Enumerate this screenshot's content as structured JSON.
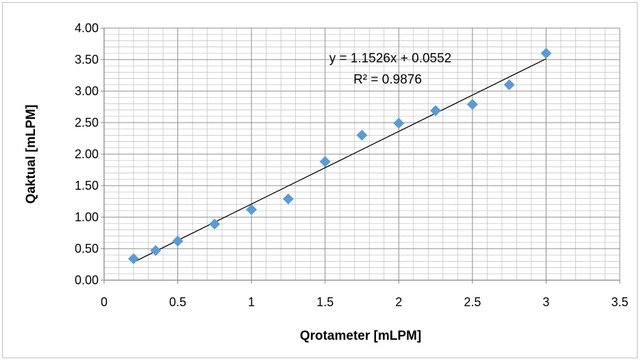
{
  "chart_data": {
    "type": "scatter",
    "title": "",
    "xlabel": "Qrotameter [mLPM]",
    "ylabel": "Qaktual [mLPM]",
    "xlim": [
      0,
      3.5
    ],
    "ylim": [
      0,
      4
    ],
    "x_ticks": [
      "0",
      "0.5",
      "1",
      "1.5",
      "2",
      "2.5",
      "3",
      "3.5"
    ],
    "y_ticks": [
      "0.00",
      "0.50",
      "1.00",
      "1.50",
      "2.00",
      "2.50",
      "3.00",
      "3.50",
      "4.00"
    ],
    "grid": true,
    "legend": "none",
    "marker": "diamond",
    "marker_color": "#5B9BD5",
    "series": [
      {
        "x": [
          0.2,
          0.35,
          0.5,
          0.75,
          1.0,
          1.25,
          1.5,
          1.75,
          2.0,
          2.25,
          2.5,
          2.75,
          3.0
        ],
        "y": [
          0.34,
          0.47,
          0.62,
          0.89,
          1.12,
          1.29,
          1.88,
          2.3,
          2.49,
          2.69,
          2.79,
          3.1,
          3.6
        ]
      }
    ],
    "trendline": {
      "type": "linear",
      "slope": 1.1526,
      "intercept": 0.0552,
      "x_range": [
        0.2,
        3.0
      ],
      "color": "#000000",
      "equation": "y = 1.1526x + 0.0552",
      "r_squared": "R² = 0.9876"
    }
  }
}
